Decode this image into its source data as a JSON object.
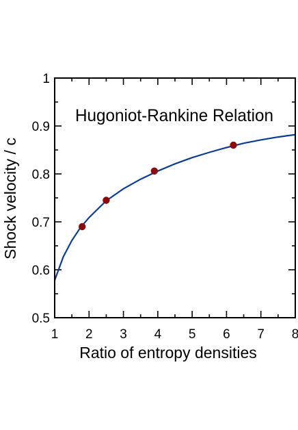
{
  "chart_data": {
    "type": "line",
    "annotation": "Hugoniot-Rankine Relation",
    "xlabel": "Ratio of entropy densities",
    "ylabel": "Shock velocity / c",
    "xlim": [
      1,
      8
    ],
    "ylim": [
      0.5,
      1
    ],
    "xticks": [
      "1",
      "2",
      "3",
      "4",
      "5",
      "6",
      "7",
      "8"
    ],
    "yticks": [
      "0.5",
      "0.6",
      "0.7",
      "0.8",
      "0.9",
      "1"
    ],
    "grid": false,
    "legend": "none",
    "series": [
      {
        "kind": "curve",
        "color": "#0a3d91",
        "x": [
          1.0,
          1.25,
          1.5,
          1.75,
          2.0,
          2.5,
          3.0,
          3.5,
          4.0,
          4.5,
          5.0,
          5.5,
          6.0,
          6.5,
          7.0,
          7.5,
          8.0
        ],
        "y": [
          0.578,
          0.627,
          0.661,
          0.688,
          0.709,
          0.744,
          0.769,
          0.789,
          0.806,
          0.821,
          0.834,
          0.845,
          0.855,
          0.864,
          0.871,
          0.877,
          0.882
        ]
      },
      {
        "kind": "points",
        "color": "#8b0a0a",
        "x": [
          1.8,
          2.5,
          3.9,
          6.2
        ],
        "y": [
          0.69,
          0.745,
          0.806,
          0.86
        ]
      }
    ]
  }
}
